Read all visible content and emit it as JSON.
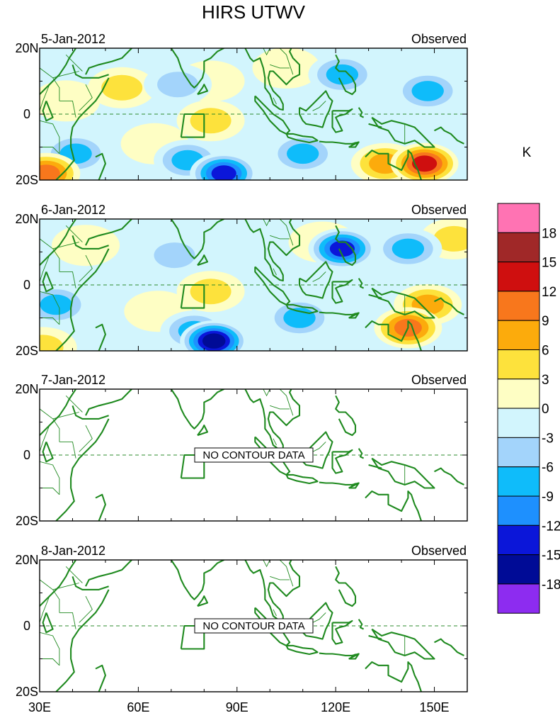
{
  "figure": {
    "title": "HIRS UTWV",
    "colorbar_unit": "K"
  },
  "colorbar": {
    "levels": [
      "18",
      "15",
      "12",
      "9",
      "6",
      "3",
      "0",
      "-3",
      "-6",
      "-9",
      "-12",
      "-15",
      "-18"
    ],
    "colors": [
      "#ff73b3",
      "#a02828",
      "#cf0f0f",
      "#f8771c",
      "#fcab0c",
      "#fde23c",
      "#fefec4",
      "#d2f5fd",
      "#a3d4fb",
      "#0fbcfa",
      "#1e90fe",
      "#0b16d9",
      "#000b96",
      "#8d2cf0"
    ]
  },
  "panels": [
    {
      "date": "5-Jan-2012",
      "label": "Observed",
      "nodata": ""
    },
    {
      "date": "6-Jan-2012",
      "label": "Observed",
      "nodata": ""
    },
    {
      "date": "7-Jan-2012",
      "label": "Observed",
      "nodata": "NO CONTOUR DATA"
    },
    {
      "date": "8-Jan-2012",
      "label": "Observed",
      "nodata": "NO CONTOUR DATA"
    }
  ],
  "axes": {
    "lat_labels": [
      "20N",
      "0",
      "20S"
    ],
    "lon_labels": [
      "30E",
      "60E",
      "90E",
      "120E",
      "150E"
    ]
  },
  "chart_data": {
    "type": "heatmap",
    "title": "HIRS UTWV",
    "variable_unit": "K",
    "x_range_degE": [
      30,
      160
    ],
    "y_range_deg": [
      -20,
      20
    ],
    "x_ticks": [
      "30E",
      "60E",
      "90E",
      "120E",
      "150E"
    ],
    "y_ticks": [
      "20N",
      "0",
      "20S"
    ],
    "contour_levels": [
      -18,
      -15,
      -12,
      -9,
      -6,
      -3,
      0,
      3,
      6,
      9,
      12,
      15,
      18
    ],
    "grid": "dashed equator line",
    "legend": "right vertical colorbar",
    "maps": [
      {
        "date": "5-Jan-2012",
        "has_data": true,
        "anomalies": [
          {
            "lon": 147,
            "lat": -15,
            "value": 15
          },
          {
            "lon": 135,
            "lat": -15,
            "value": 9
          },
          {
            "lon": 55,
            "lat": 8,
            "value": 6
          },
          {
            "lon": 82,
            "lat": 10,
            "value": 3
          },
          {
            "lon": 82,
            "lat": -2,
            "value": 6
          },
          {
            "lon": 65,
            "lat": -9,
            "value": 3
          },
          {
            "lon": 105,
            "lat": 14,
            "value": 3
          },
          {
            "lon": 38,
            "lat": 4,
            "value": 3
          },
          {
            "lon": 86,
            "lat": -18,
            "value": -15
          },
          {
            "lon": 75,
            "lat": -14,
            "value": -9
          },
          {
            "lon": 41,
            "lat": -12,
            "value": -9
          },
          {
            "lon": 122,
            "lat": 12,
            "value": -9
          },
          {
            "lon": 148,
            "lat": 7,
            "value": -9
          },
          {
            "lon": 110,
            "lat": -12,
            "value": -9
          },
          {
            "lon": 72,
            "lat": 9,
            "value": -6
          },
          {
            "lon": 32,
            "lat": -18,
            "value": 12
          }
        ]
      },
      {
        "date": "6-Jan-2012",
        "has_data": true,
        "anomalies": [
          {
            "lon": 142,
            "lat": -13,
            "value": 12
          },
          {
            "lon": 148,
            "lat": -6,
            "value": 9
          },
          {
            "lon": 156,
            "lat": 14,
            "value": 6
          },
          {
            "lon": 82,
            "lat": -2,
            "value": 6
          },
          {
            "lon": 66,
            "lat": -8,
            "value": 3
          },
          {
            "lon": 44,
            "lat": 12,
            "value": 3
          },
          {
            "lon": 116,
            "lat": 13,
            "value": 3
          },
          {
            "lon": 83,
            "lat": -17,
            "value": -18
          },
          {
            "lon": 122,
            "lat": 11,
            "value": -15
          },
          {
            "lon": 77,
            "lat": -14,
            "value": -9
          },
          {
            "lon": 35,
            "lat": -6,
            "value": -9
          },
          {
            "lon": 109,
            "lat": -10,
            "value": -9
          },
          {
            "lon": 142,
            "lat": 11,
            "value": -9
          },
          {
            "lon": 71,
            "lat": 9,
            "value": -6
          },
          {
            "lon": 31,
            "lat": -19,
            "value": 6
          }
        ]
      },
      {
        "date": "7-Jan-2012",
        "has_data": false,
        "anomalies": []
      },
      {
        "date": "8-Jan-2012",
        "has_data": false,
        "anomalies": []
      }
    ]
  }
}
